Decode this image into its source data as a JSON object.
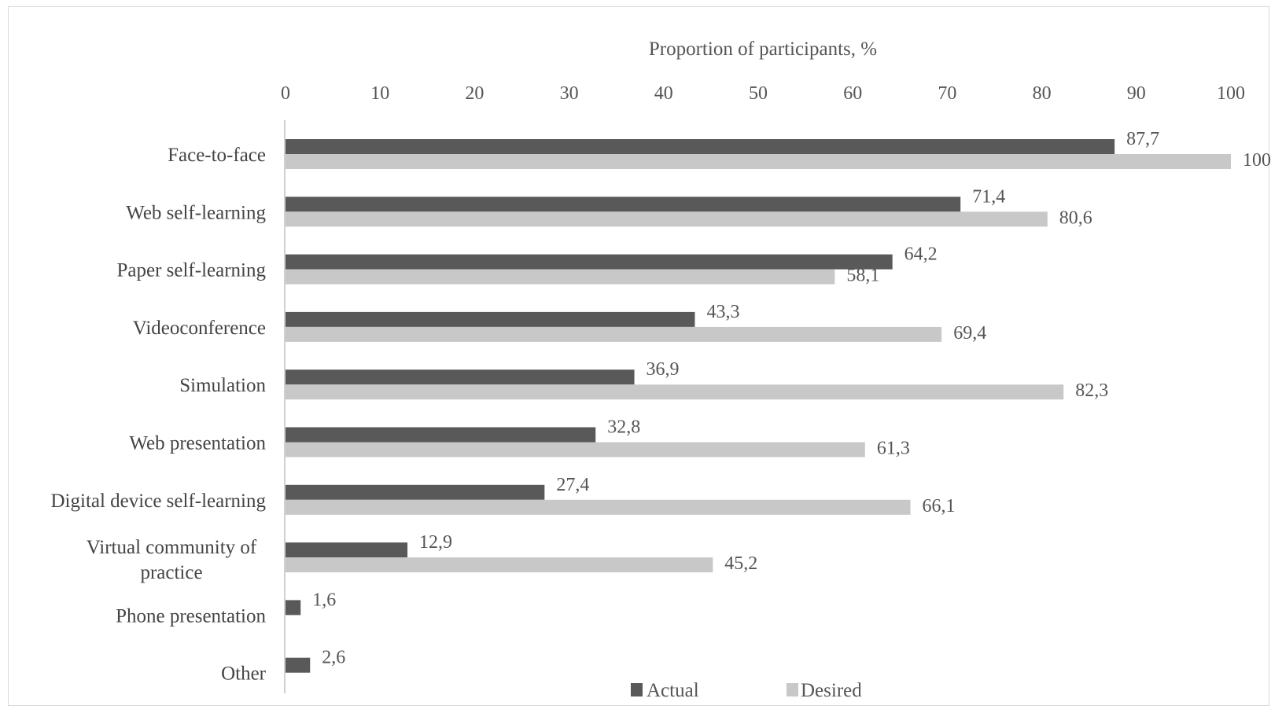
{
  "chart_data": {
    "type": "bar",
    "orientation": "horizontal",
    "xlabel": "Proportion of participants, %",
    "x_axis_position": "top",
    "xlim": [
      0,
      100
    ],
    "xticks": [
      "0",
      "10",
      "20",
      "30",
      "40",
      "50",
      "60",
      "70",
      "80",
      "90",
      "100"
    ],
    "grid": false,
    "legend_position": "bottom",
    "categories": [
      "Face-to-face",
      "Web self-learning",
      "Paper self-learning",
      "Videoconference",
      "Simulation",
      "Web presentation",
      "Digital device self-learning",
      "Virtual community of practice",
      "Phone presentation",
      "Other"
    ],
    "series": [
      {
        "name": "Actual",
        "color": "#595959",
        "values": [
          87.7,
          71.4,
          64.2,
          43.3,
          36.9,
          32.8,
          27.4,
          12.9,
          1.6,
          2.6
        ],
        "labels": [
          "87,7",
          "71,4",
          "64,2",
          "43,3",
          "36,9",
          "32,8",
          "27,4",
          "12,9",
          "1,6",
          "2,6"
        ]
      },
      {
        "name": "Desired",
        "color": "#c8c8c8",
        "values": [
          100,
          80.6,
          58.1,
          69.4,
          82.3,
          61.3,
          66.1,
          45.2,
          null,
          null
        ],
        "labels": [
          "100",
          "80,6",
          "58,1",
          "69,4",
          "82,3",
          "61,3",
          "66,1",
          "45,2",
          "",
          ""
        ]
      }
    ]
  }
}
